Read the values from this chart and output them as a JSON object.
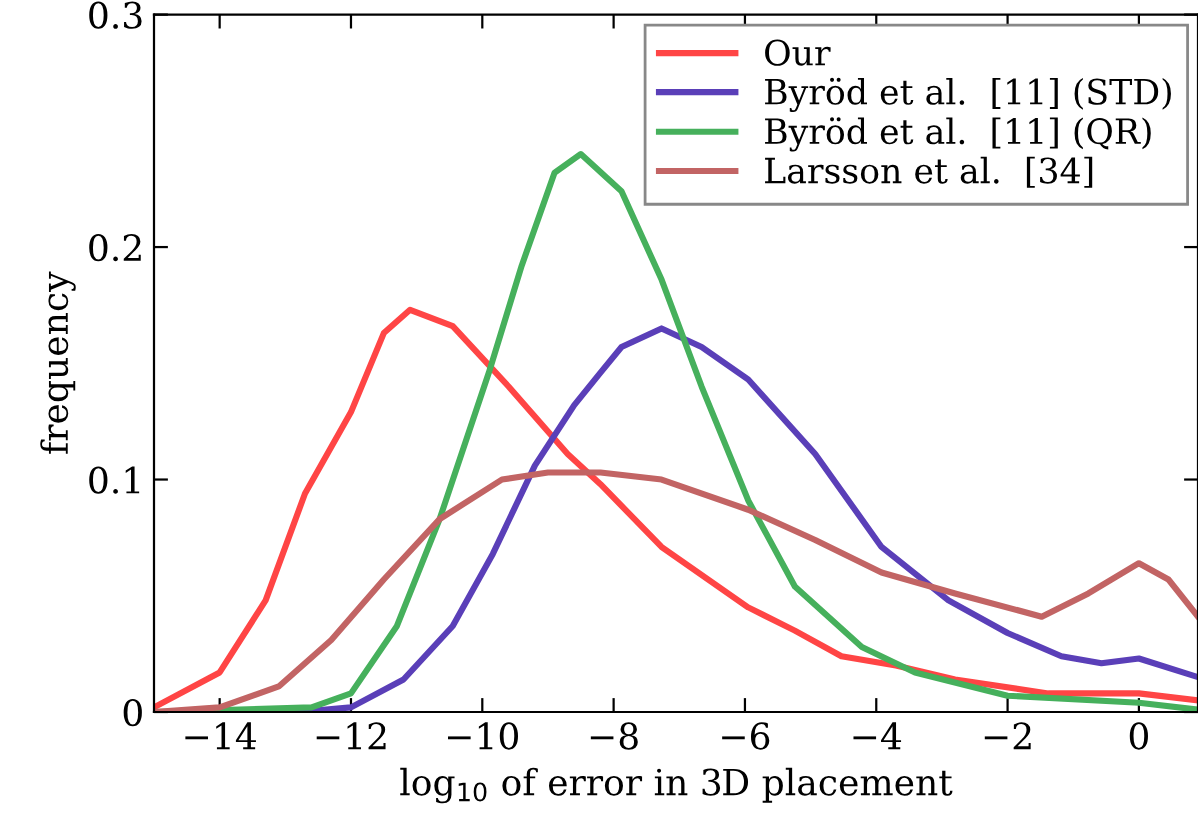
{
  "chart_data": {
    "type": "line",
    "xlabel": "log$_{10}$ of error in 3D placement",
    "ylabel": "frequency",
    "xlim": [
      -15,
      0.9
    ],
    "ylim": [
      0,
      0.3
    ],
    "xticks": [
      -14,
      -12,
      -10,
      -8,
      -6,
      -4,
      -2,
      0
    ],
    "yticks": [
      0,
      0.1,
      0.2,
      0.3
    ],
    "grid": false,
    "legend": "top right",
    "marker": "none",
    "line_style": "solid",
    "series": [
      {
        "name": "Our",
        "color": "#ff4545",
        "x": [
          -15,
          -14,
          -13.3,
          -12.7,
          -12,
          -11.5,
          -11.1,
          -10.45,
          -9.6,
          -8.7,
          -8.2,
          -7.27,
          -5.95,
          -5.24,
          -4.53,
          -3.7,
          -2.8,
          -1.38,
          0,
          0.9
        ],
        "values": [
          0.002,
          0.017,
          0.048,
          0.094,
          0.129,
          0.163,
          0.173,
          0.166,
          0.14,
          0.111,
          0.098,
          0.071,
          0.045,
          0.035,
          0.024,
          0.02,
          0.014,
          0.008,
          0.008,
          0.005
        ]
      },
      {
        "name": "Byröd et al.  [11] (STD)",
        "color": "#5a3fb8",
        "x": [
          -15,
          -12.8,
          -12,
          -11.2,
          -10.45,
          -9.84,
          -9.2,
          -8.6,
          -8.2,
          -7.88,
          -7.27,
          -6.66,
          -5.95,
          -4.93,
          -3.92,
          -2.9,
          -2,
          -1.18,
          -0.57,
          0,
          0.9
        ],
        "values": [
          0,
          0,
          0.002,
          0.014,
          0.037,
          0.068,
          0.106,
          0.132,
          0.146,
          0.157,
          0.165,
          0.157,
          0.143,
          0.111,
          0.071,
          0.048,
          0.034,
          0.024,
          0.021,
          0.023,
          0.015
        ]
      },
      {
        "name": "Byröd et al.  [11] (QR)",
        "color": "#46b05c",
        "x": [
          -15,
          -12.6,
          -12,
          -11.3,
          -10.65,
          -9.9,
          -9.4,
          -8.9,
          -8.5,
          -7.88,
          -7.27,
          -6.66,
          -5.95,
          -5.24,
          -4.22,
          -3.41,
          -2,
          0,
          0.9
        ],
        "values": [
          0,
          0.002,
          0.008,
          0.037,
          0.083,
          0.146,
          0.192,
          0.232,
          0.24,
          0.224,
          0.186,
          0.14,
          0.091,
          0.054,
          0.028,
          0.017,
          0.007,
          0.004,
          0.001
        ]
      },
      {
        "name": "Larsson et al.  [34]",
        "color": "#c26464",
        "x": [
          -15,
          -14,
          -13.1,
          -12.3,
          -11.5,
          -10.65,
          -9.7,
          -9,
          -8.2,
          -7.27,
          -5.95,
          -4.93,
          -3.92,
          -2.8,
          -1.48,
          -0.77,
          0,
          0.45,
          0.9
        ],
        "values": [
          0,
          0.002,
          0.011,
          0.031,
          0.057,
          0.083,
          0.1,
          0.103,
          0.103,
          0.1,
          0.087,
          0.074,
          0.06,
          0.051,
          0.041,
          0.051,
          0.064,
          0.057,
          0.041
        ]
      }
    ]
  }
}
